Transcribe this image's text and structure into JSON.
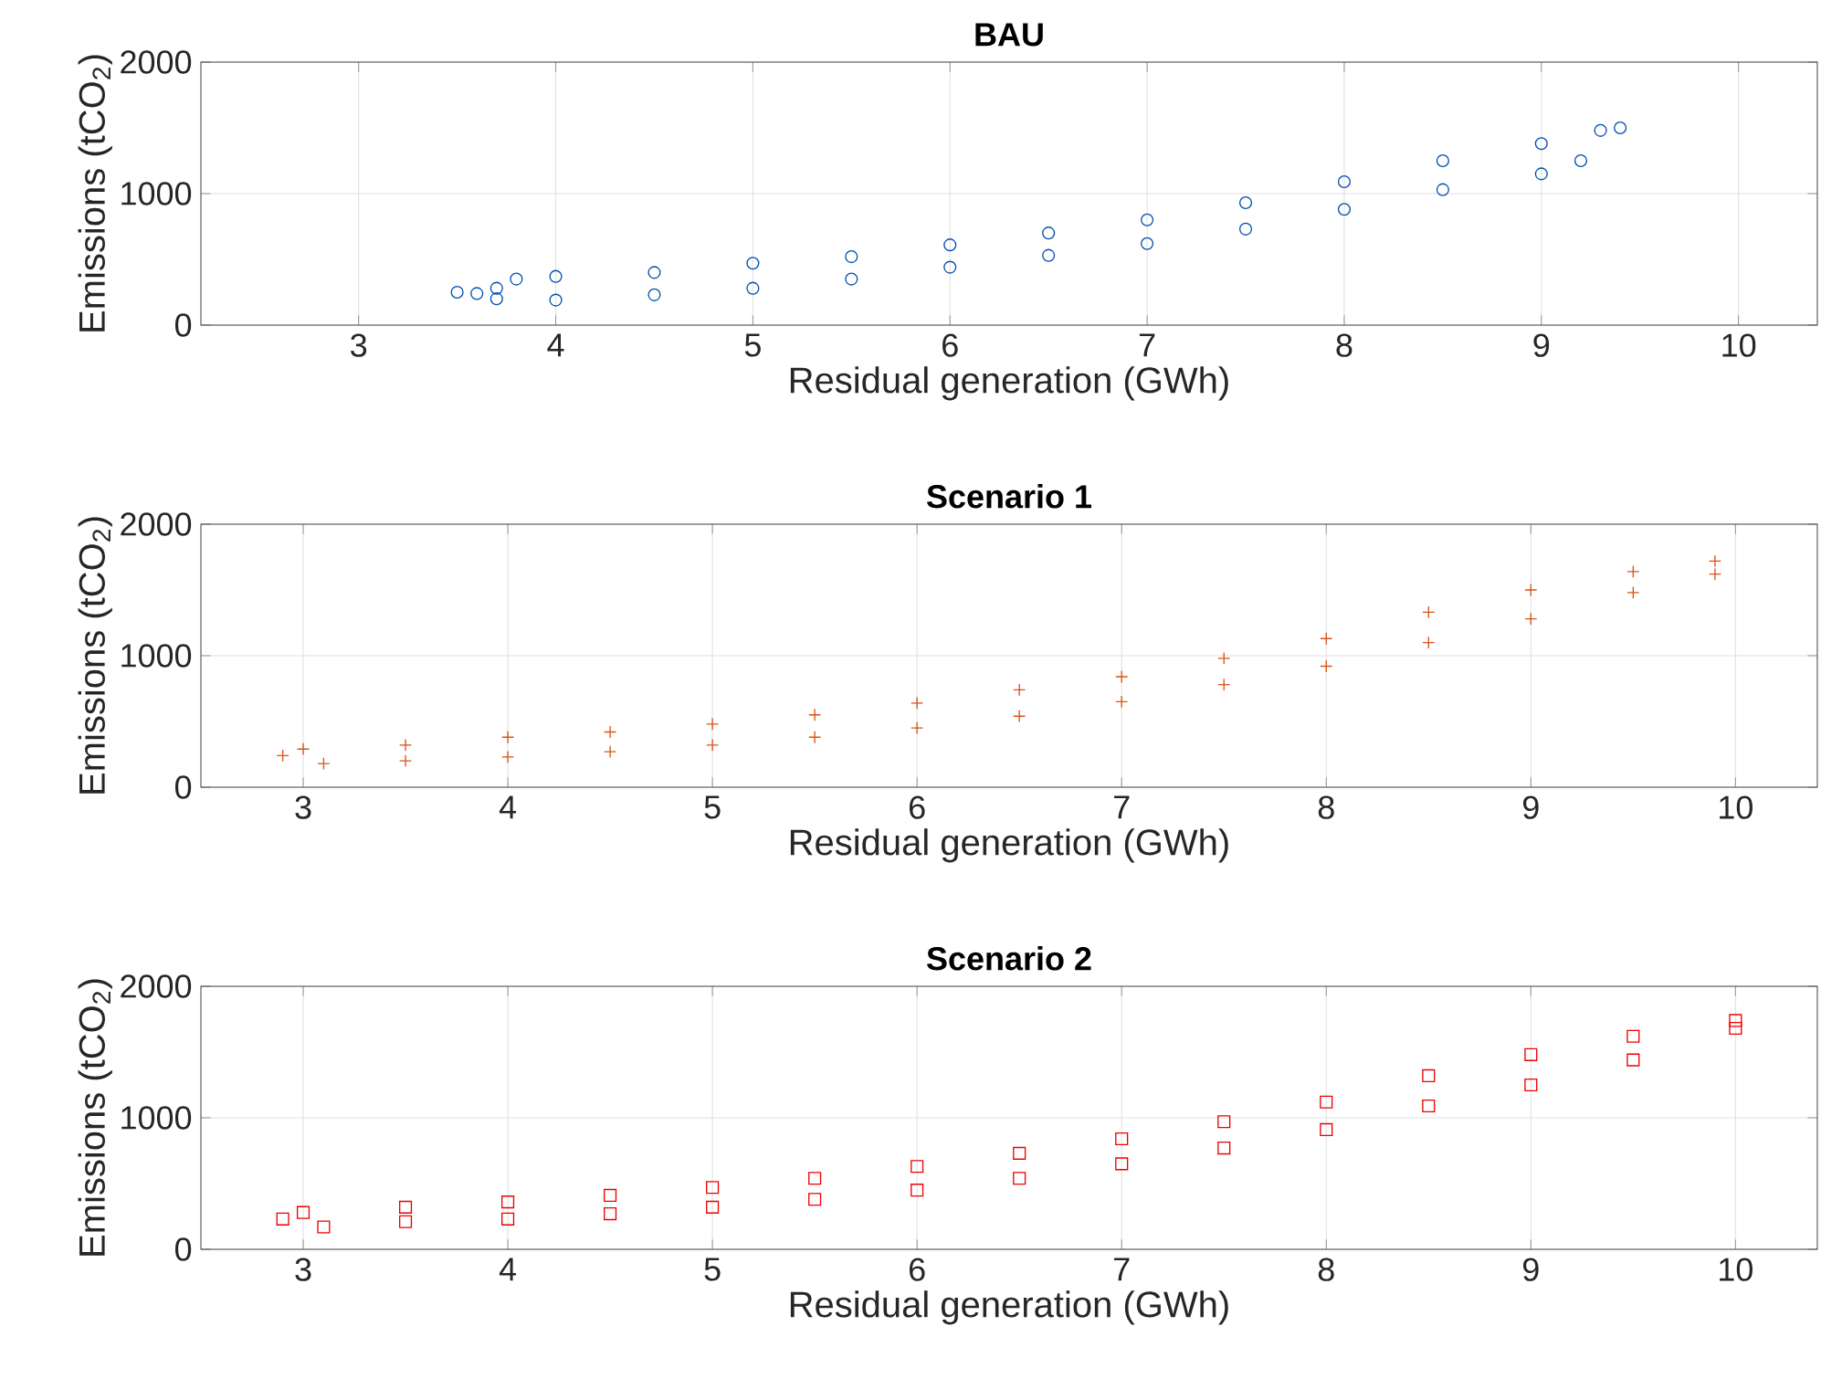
{
  "chart_data": [
    {
      "type": "scatter",
      "title": "BAU",
      "xlabel": "Residual generation (GWh)",
      "ylabel": "Emissions (tCO$_{2}$)",
      "xlim": [
        2.2,
        10.4
      ],
      "xticks": [
        3,
        4,
        5,
        6,
        7,
        8,
        9,
        10
      ],
      "ylim": [
        0,
        2000
      ],
      "yticks": [
        0,
        1000,
        2000
      ],
      "grid": true,
      "marker": "circle",
      "series": [
        {
          "color": "#0050b0",
          "x": [
            3.5,
            3.6,
            3.7,
            3.7,
            3.8,
            4.0,
            4.0,
            4.5,
            4.5,
            5.0,
            5.0,
            5.5,
            5.5,
            6.0,
            6.0,
            6.5,
            6.5,
            7.0,
            7.0,
            7.5,
            7.5,
            8.0,
            8.0,
            8.5,
            8.5,
            9.0,
            9.0,
            9.2,
            9.3,
            9.4
          ],
          "values": [
            250,
            240,
            200,
            280,
            350,
            190,
            370,
            230,
            400,
            280,
            470,
            350,
            520,
            440,
            610,
            530,
            700,
            620,
            800,
            730,
            930,
            880,
            1090,
            1030,
            1250,
            1150,
            1380,
            1250,
            1480,
            1500
          ]
        }
      ]
    },
    {
      "type": "scatter",
      "title": "Scenario 1",
      "xlabel": "Residual generation (GWh)",
      "ylabel": "Emissions (tCO$_{2}$)",
      "xlim": [
        2.5,
        10.4
      ],
      "xticks": [
        3,
        4,
        5,
        6,
        7,
        8,
        9,
        10
      ],
      "ylim": [
        0,
        2000
      ],
      "yticks": [
        0,
        1000,
        2000
      ],
      "grid": true,
      "marker": "cross",
      "series": [
        {
          "color": "#d95319",
          "x": [
            2.9,
            3.0,
            3.1,
            3.5,
            3.5,
            4.0,
            4.0,
            4.5,
            4.5,
            5.0,
            5.0,
            5.5,
            5.5,
            6.0,
            6.0,
            6.5,
            6.5,
            7.0,
            7.0,
            7.5,
            7.5,
            8.0,
            8.0,
            8.5,
            8.5,
            9.0,
            9.0,
            9.5,
            9.5,
            9.9,
            9.9
          ],
          "values": [
            240,
            290,
            180,
            200,
            320,
            230,
            380,
            270,
            420,
            320,
            480,
            380,
            550,
            450,
            640,
            540,
            740,
            650,
            840,
            780,
            980,
            920,
            1130,
            1100,
            1330,
            1280,
            1500,
            1480,
            1640,
            1620,
            1720
          ]
        }
      ]
    },
    {
      "type": "scatter",
      "title": "Scenario 2",
      "xlabel": "Residual generation (GWh)",
      "ylabel": "Emissions (tCO$_{2}$)",
      "xlim": [
        2.5,
        10.4
      ],
      "xticks": [
        3,
        4,
        5,
        6,
        7,
        8,
        9,
        10
      ],
      "ylim": [
        0,
        2000
      ],
      "yticks": [
        0,
        1000,
        2000
      ],
      "grid": true,
      "marker": "square",
      "series": [
        {
          "color": "#ee0000",
          "x": [
            2.9,
            3.0,
            3.1,
            3.5,
            3.5,
            4.0,
            4.0,
            4.5,
            4.5,
            5.0,
            5.0,
            5.5,
            5.5,
            6.0,
            6.0,
            6.5,
            6.5,
            7.0,
            7.0,
            7.5,
            7.5,
            8.0,
            8.0,
            8.5,
            8.5,
            9.0,
            9.0,
            9.5,
            9.5,
            10.0,
            10.0
          ],
          "values": [
            230,
            280,
            170,
            210,
            320,
            230,
            360,
            270,
            410,
            320,
            470,
            380,
            540,
            450,
            630,
            540,
            730,
            650,
            840,
            770,
            970,
            910,
            1120,
            1090,
            1320,
            1250,
            1480,
            1440,
            1620,
            1680,
            1740
          ]
        }
      ]
    }
  ]
}
